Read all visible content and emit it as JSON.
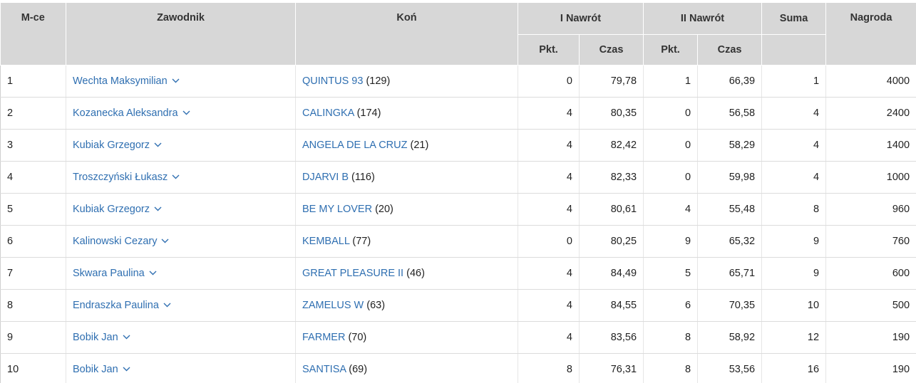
{
  "headers": {
    "place": "M-ce",
    "rider": "Zawodnik",
    "horse": "Koń",
    "round1": "I Nawrót",
    "round2": "II Nawrót",
    "sum": "Suma",
    "prize": "Nagroda",
    "pkt": "Pkt.",
    "czas": "Czas"
  },
  "rows": [
    {
      "place": "1",
      "rider": "Wechta Maksymilian",
      "horse": "QUINTUS 93",
      "horse_id": "(129)",
      "r1_pkt": "0",
      "r1_czas": "79,78",
      "r2_pkt": "1",
      "r2_czas": "66,39",
      "sum": "1",
      "prize": "4000"
    },
    {
      "place": "2",
      "rider": "Kozanecka Aleksandra",
      "horse": "CALINGKA",
      "horse_id": "(174)",
      "r1_pkt": "4",
      "r1_czas": "80,35",
      "r2_pkt": "0",
      "r2_czas": "56,58",
      "sum": "4",
      "prize": "2400"
    },
    {
      "place": "3",
      "rider": "Kubiak Grzegorz",
      "horse": "ANGELA DE LA CRUZ",
      "horse_id": "(21)",
      "r1_pkt": "4",
      "r1_czas": "82,42",
      "r2_pkt": "0",
      "r2_czas": "58,29",
      "sum": "4",
      "prize": "1400"
    },
    {
      "place": "4",
      "rider": "Troszczyński Łukasz",
      "horse": "DJARVI B",
      "horse_id": "(116)",
      "r1_pkt": "4",
      "r1_czas": "82,33",
      "r2_pkt": "0",
      "r2_czas": "59,98",
      "sum": "4",
      "prize": "1000"
    },
    {
      "place": "5",
      "rider": "Kubiak Grzegorz",
      "horse": "BE MY LOVER",
      "horse_id": "(20)",
      "r1_pkt": "4",
      "r1_czas": "80,61",
      "r2_pkt": "4",
      "r2_czas": "55,48",
      "sum": "8",
      "prize": "960"
    },
    {
      "place": "6",
      "rider": "Kalinowski Cezary",
      "horse": "KEMBALL",
      "horse_id": "(77)",
      "r1_pkt": "0",
      "r1_czas": "80,25",
      "r2_pkt": "9",
      "r2_czas": "65,32",
      "sum": "9",
      "prize": "760"
    },
    {
      "place": "7",
      "rider": "Skwara Paulina",
      "horse": "GREAT PLEASURE II",
      "horse_id": "(46)",
      "r1_pkt": "4",
      "r1_czas": "84,49",
      "r2_pkt": "5",
      "r2_czas": "65,71",
      "sum": "9",
      "prize": "600"
    },
    {
      "place": "8",
      "rider": "Endraszka Paulina",
      "horse": "ZAMELUS W",
      "horse_id": "(63)",
      "r1_pkt": "4",
      "r1_czas": "84,55",
      "r2_pkt": "6",
      "r2_czas": "70,35",
      "sum": "10",
      "prize": "500"
    },
    {
      "place": "9",
      "rider": "Bobik Jan",
      "horse": "FARMER",
      "horse_id": "(70)",
      "r1_pkt": "4",
      "r1_czas": "83,56",
      "r2_pkt": "8",
      "r2_czas": "58,92",
      "sum": "12",
      "prize": "190"
    },
    {
      "place": "10",
      "rider": "Bobik Jan",
      "horse": "SANTISA",
      "horse_id": "(69)",
      "r1_pkt": "8",
      "r1_czas": "76,31",
      "r2_pkt": "8",
      "r2_czas": "53,56",
      "sum": "16",
      "prize": "190"
    }
  ],
  "icons": {
    "rider_expand": "chevron-down-icon"
  },
  "colors": {
    "link": "#2f6fb1",
    "header_bg": "#d7d7d7"
  }
}
